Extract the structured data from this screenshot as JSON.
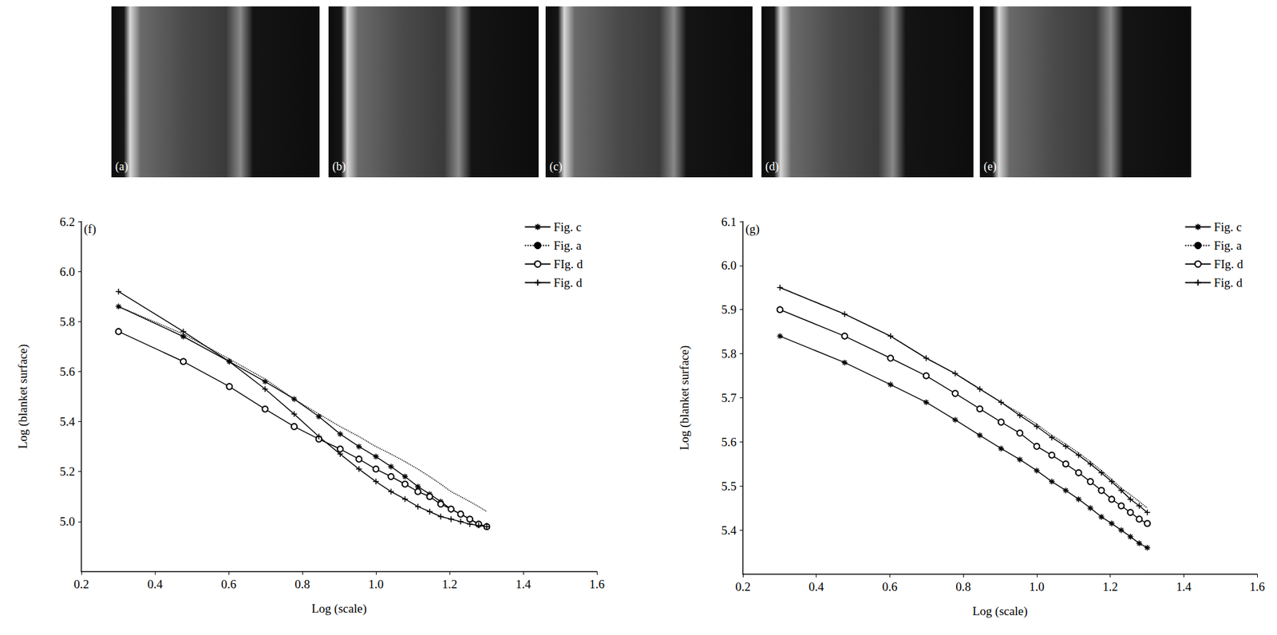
{
  "images": [
    {
      "label": "(a)"
    },
    {
      "label": "(b)"
    },
    {
      "label": "(c)"
    },
    {
      "label": "(d)"
    },
    {
      "label": "(e)"
    }
  ],
  "chart_data": [
    {
      "type": "line",
      "label": "(f)",
      "x_label": "Log (scale)",
      "y_label": "Log (blanket surface)",
      "xlim": [
        0.2,
        1.6
      ],
      "xticks": [
        0.2,
        0.4,
        0.6,
        0.8,
        {
          "value": 1,
          "label": "1.0"
        },
        1.2,
        1.4,
        1.6
      ],
      "ylim": [
        4.8,
        6.2
      ],
      "yticks": [
        {
          "value": 5,
          "label": "5.0"
        },
        5.2,
        5.4,
        5.6,
        5.8,
        {
          "value": 6,
          "label": "6.0"
        },
        6.2
      ],
      "grid": false,
      "legend": "upper right",
      "x": [
        0.301,
        0.477,
        0.602,
        0.699,
        0.778,
        0.845,
        0.903,
        0.954,
        1.0,
        1.041,
        1.079,
        1.114,
        1.146,
        1.176,
        1.204,
        1.23,
        1.255,
        1.279,
        1.301
      ],
      "series": [
        {
          "name": "Fig. c",
          "color": "#000000",
          "marker": "star",
          "line_style": "solid",
          "values": [
            5.86,
            5.74,
            5.64,
            5.56,
            5.49,
            5.42,
            5.35,
            5.3,
            5.26,
            5.22,
            5.18,
            5.14,
            5.11,
            5.08,
            5.05,
            5.03,
            5.01,
            4.99,
            4.98
          ]
        },
        {
          "name": "Fig. a",
          "color": "#000000",
          "marker": "none",
          "line_style": "dotted",
          "values": [
            5.86,
            5.75,
            5.65,
            5.57,
            5.49,
            5.43,
            5.38,
            5.34,
            5.3,
            5.27,
            5.24,
            5.21,
            5.18,
            5.15,
            5.12,
            5.1,
            5.08,
            5.06,
            5.04
          ]
        },
        {
          "name": "FIg. d",
          "color": "#000000",
          "marker": "circle",
          "line_style": "solid",
          "values": [
            5.76,
            5.64,
            5.54,
            5.45,
            5.38,
            5.33,
            5.29,
            5.25,
            5.21,
            5.18,
            5.15,
            5.12,
            5.1,
            5.07,
            5.05,
            5.03,
            5.01,
            4.99,
            4.98
          ]
        },
        {
          "name": "Fig. d",
          "color": "#000000",
          "marker": "plus",
          "line_style": "solid",
          "values": [
            5.92,
            5.76,
            5.64,
            5.53,
            5.43,
            5.34,
            5.27,
            5.21,
            5.16,
            5.12,
            5.09,
            5.06,
            5.04,
            5.02,
            5.01,
            5.0,
            4.99,
            4.985,
            4.98
          ]
        }
      ]
    },
    {
      "type": "line",
      "label": "(g)",
      "x_label": "Log (scale)",
      "y_label": "Log (blanket surface)",
      "xlim": [
        0.2,
        1.6
      ],
      "xticks": [
        0.2,
        0.4,
        0.6,
        0.8,
        {
          "value": 1,
          "label": "1.0"
        },
        1.2,
        1.4,
        1.6
      ],
      "ylim": [
        5.3,
        6.1
      ],
      "yticks": [
        5.4,
        5.5,
        5.6,
        5.7,
        5.8,
        5.9,
        {
          "value": 6,
          "label": "6.0"
        },
        6.1
      ],
      "grid": false,
      "legend": "upper right",
      "x": [
        0.301,
        0.477,
        0.602,
        0.699,
        0.778,
        0.845,
        0.903,
        0.954,
        1.0,
        1.041,
        1.079,
        1.114,
        1.146,
        1.176,
        1.204,
        1.23,
        1.255,
        1.279,
        1.301
      ],
      "series": [
        {
          "name": "Fig. c",
          "color": "#000000",
          "marker": "star",
          "line_style": "solid",
          "values": [
            5.84,
            5.78,
            5.73,
            5.69,
            5.65,
            5.615,
            5.585,
            5.56,
            5.535,
            5.51,
            5.49,
            5.47,
            5.45,
            5.43,
            5.415,
            5.4,
            5.385,
            5.37,
            5.36
          ]
        },
        {
          "name": "Fig. a",
          "color": "#000000",
          "marker": "none",
          "line_style": "dotted",
          "values": [
            5.95,
            5.89,
            5.84,
            5.79,
            5.755,
            5.72,
            5.69,
            5.665,
            5.64,
            5.615,
            5.595,
            5.575,
            5.555,
            5.535,
            5.515,
            5.495,
            5.48,
            5.465,
            5.45
          ]
        },
        {
          "name": "FIg. d",
          "color": "#000000",
          "marker": "circle",
          "line_style": "solid",
          "values": [
            5.9,
            5.84,
            5.79,
            5.75,
            5.71,
            5.675,
            5.645,
            5.62,
            5.59,
            5.57,
            5.55,
            5.53,
            5.51,
            5.49,
            5.47,
            5.455,
            5.44,
            5.425,
            5.415
          ]
        },
        {
          "name": "Fig. d",
          "color": "#000000",
          "marker": "plus",
          "line_style": "solid",
          "values": [
            5.95,
            5.89,
            5.84,
            5.79,
            5.755,
            5.72,
            5.69,
            5.66,
            5.635,
            5.61,
            5.59,
            5.57,
            5.55,
            5.53,
            5.51,
            5.49,
            5.47,
            5.455,
            5.44
          ]
        }
      ]
    }
  ]
}
